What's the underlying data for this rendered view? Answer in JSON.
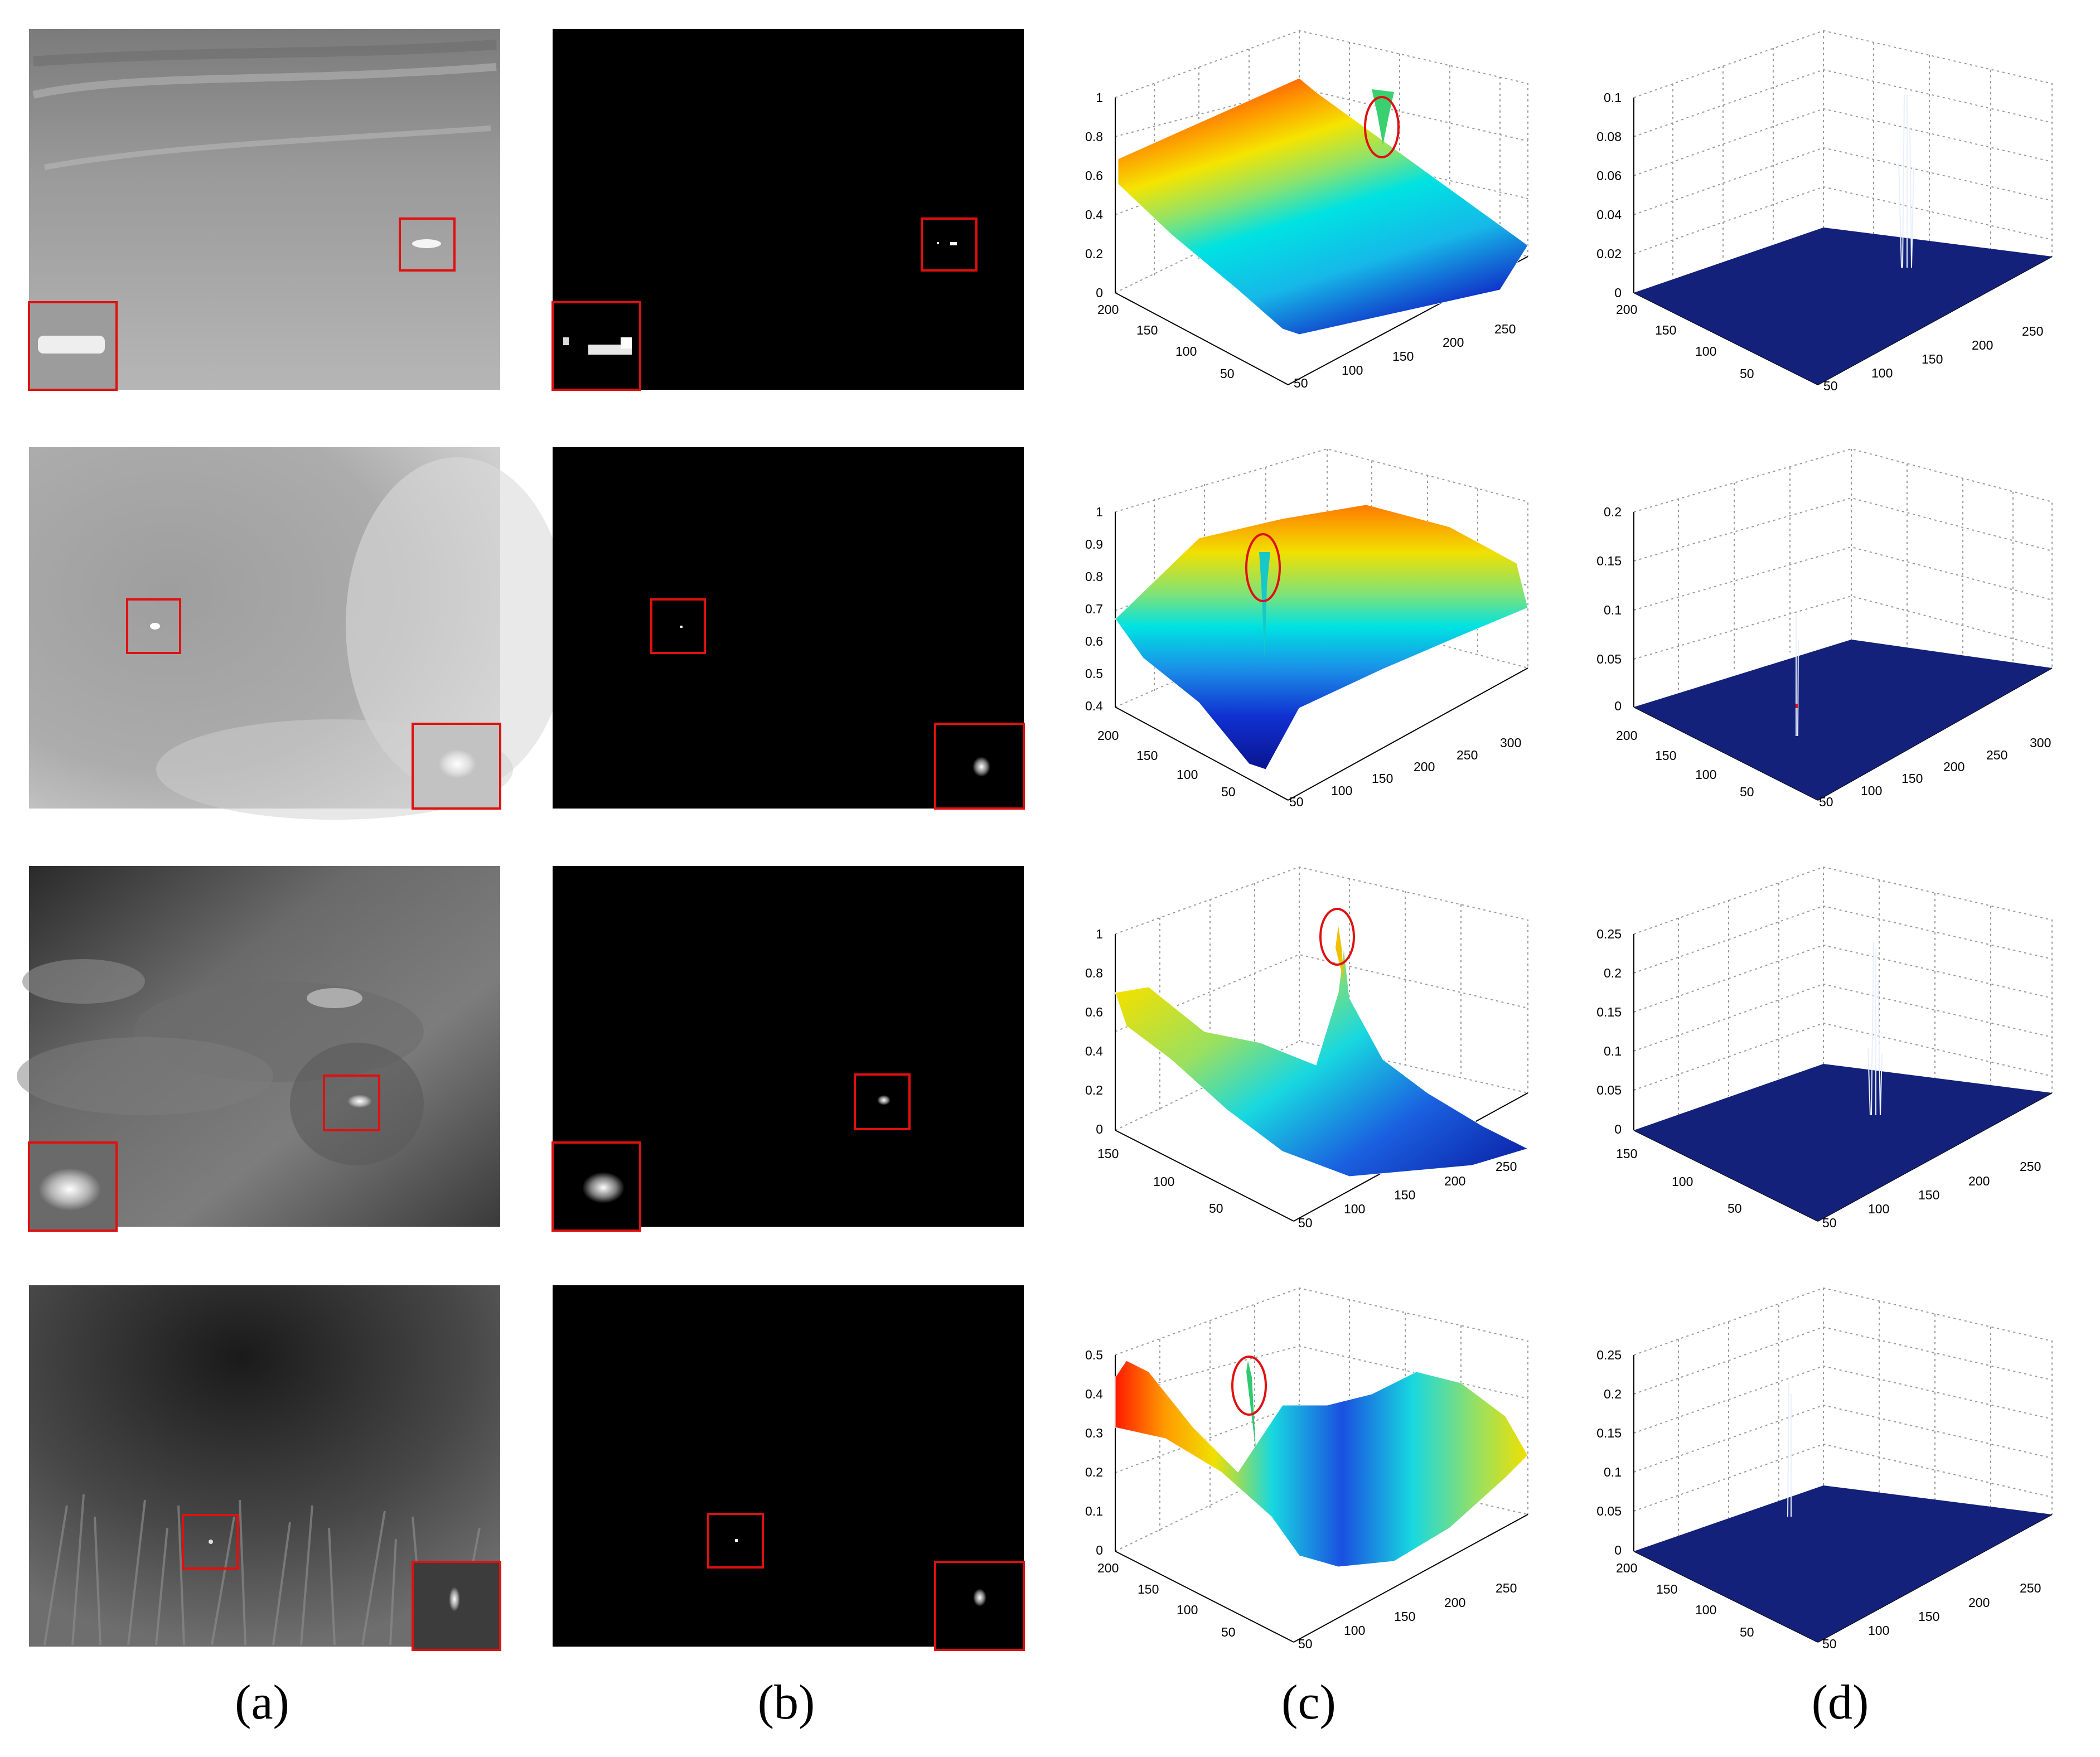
{
  "figure": {
    "column_captions": [
      "(a)",
      "(b)",
      "(c)",
      "(d)"
    ],
    "rows": [
      {
        "c_surface": {
          "z_ticks": [
            "0",
            "0.2",
            "0.4",
            "0.6",
            "0.8",
            "1"
          ],
          "y_ticks": [
            "200",
            "150",
            "100",
            "50"
          ],
          "x_ticks": [
            "50",
            "100",
            "150",
            "200",
            "250"
          ]
        },
        "d_surface": {
          "z_ticks": [
            "0",
            "0.02",
            "0.04",
            "0.06",
            "0.08",
            "0.1"
          ],
          "y_ticks": [
            "200",
            "150",
            "100",
            "50"
          ],
          "x_ticks": [
            "50",
            "100",
            "150",
            "200",
            "250"
          ]
        }
      },
      {
        "c_surface": {
          "z_ticks": [
            "0.4",
            "0.5",
            "0.6",
            "0.7",
            "0.8",
            "0.9",
            "1"
          ],
          "y_ticks": [
            "200",
            "150",
            "100",
            "50"
          ],
          "x_ticks": [
            "50",
            "100",
            "150",
            "200",
            "250",
            "300"
          ]
        },
        "d_surface": {
          "z_ticks": [
            "0",
            "0.05",
            "0.1",
            "0.15",
            "0.2"
          ],
          "y_ticks": [
            "200",
            "150",
            "100",
            "50"
          ],
          "x_ticks": [
            "50",
            "100",
            "150",
            "200",
            "250",
            "300"
          ]
        }
      },
      {
        "c_surface": {
          "z_ticks": [
            "0",
            "0.2",
            "0.4",
            "0.6",
            "0.8",
            "1"
          ],
          "y_ticks": [
            "150",
            "100",
            "50"
          ],
          "x_ticks": [
            "50",
            "100",
            "150",
            "200",
            "250"
          ]
        },
        "d_surface": {
          "z_ticks": [
            "0",
            "0.05",
            "0.1",
            "0.15",
            "0.2",
            "0.25"
          ],
          "y_ticks": [
            "150",
            "100",
            "50"
          ],
          "x_ticks": [
            "50",
            "100",
            "150",
            "200",
            "250"
          ]
        }
      },
      {
        "c_surface": {
          "z_ticks": [
            "0",
            "0.1",
            "0.2",
            "0.3",
            "0.4",
            "0.5"
          ],
          "y_ticks": [
            "200",
            "150",
            "100",
            "50"
          ],
          "x_ticks": [
            "50",
            "100",
            "150",
            "200",
            "250"
          ]
        },
        "d_surface": {
          "z_ticks": [
            "0",
            "0.05",
            "0.1",
            "0.15",
            "0.2",
            "0.25"
          ],
          "y_ticks": [
            "200",
            "150",
            "100",
            "50"
          ],
          "x_ticks": [
            "50",
            "100",
            "150",
            "200",
            "250"
          ]
        }
      }
    ]
  },
  "colors": {
    "highlight_box": "#e01010",
    "surface_low": "#0a1aa0",
    "surface_mid": "#00e0e0",
    "surface_high": "#ff1000",
    "response_flat": "#14217a",
    "response_peak": "#f0f6ff"
  }
}
